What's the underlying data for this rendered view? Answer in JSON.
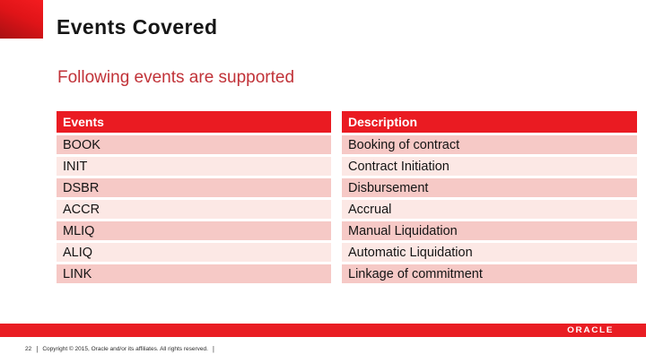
{
  "slide": {
    "title": "Events Covered",
    "subtitle": "Following events are supported"
  },
  "table": {
    "headers": [
      "Events",
      "Description"
    ],
    "rows": [
      {
        "event": "BOOK",
        "description": "Booking of contract"
      },
      {
        "event": "INIT",
        "description": "Contract Initiation"
      },
      {
        "event": "DSBR",
        "description": "Disbursement"
      },
      {
        "event": "ACCR",
        "description": "Accrual"
      },
      {
        "event": "MLIQ",
        "description": "Manual Liquidation"
      },
      {
        "event": "ALIQ",
        "description": "Automatic Liquidation"
      },
      {
        "event": "LINK",
        "description": "Linkage of commitment"
      }
    ]
  },
  "footer": {
    "page_number": "22",
    "separator": "|",
    "copyright": "Copyright © 2015, Oracle and/or its affiliates. All rights reserved.",
    "logo_text": "ORACLE"
  },
  "colors": {
    "header_red": "#ea1b22",
    "row_pink_dark": "#f6c9c6",
    "row_pink_light": "#fce8e5",
    "subtitle_red": "#c13238",
    "bottom_bar_red": "#e91d23",
    "corner_gradient_top": "#f41c20",
    "corner_gradient_bottom": "#a81013"
  }
}
